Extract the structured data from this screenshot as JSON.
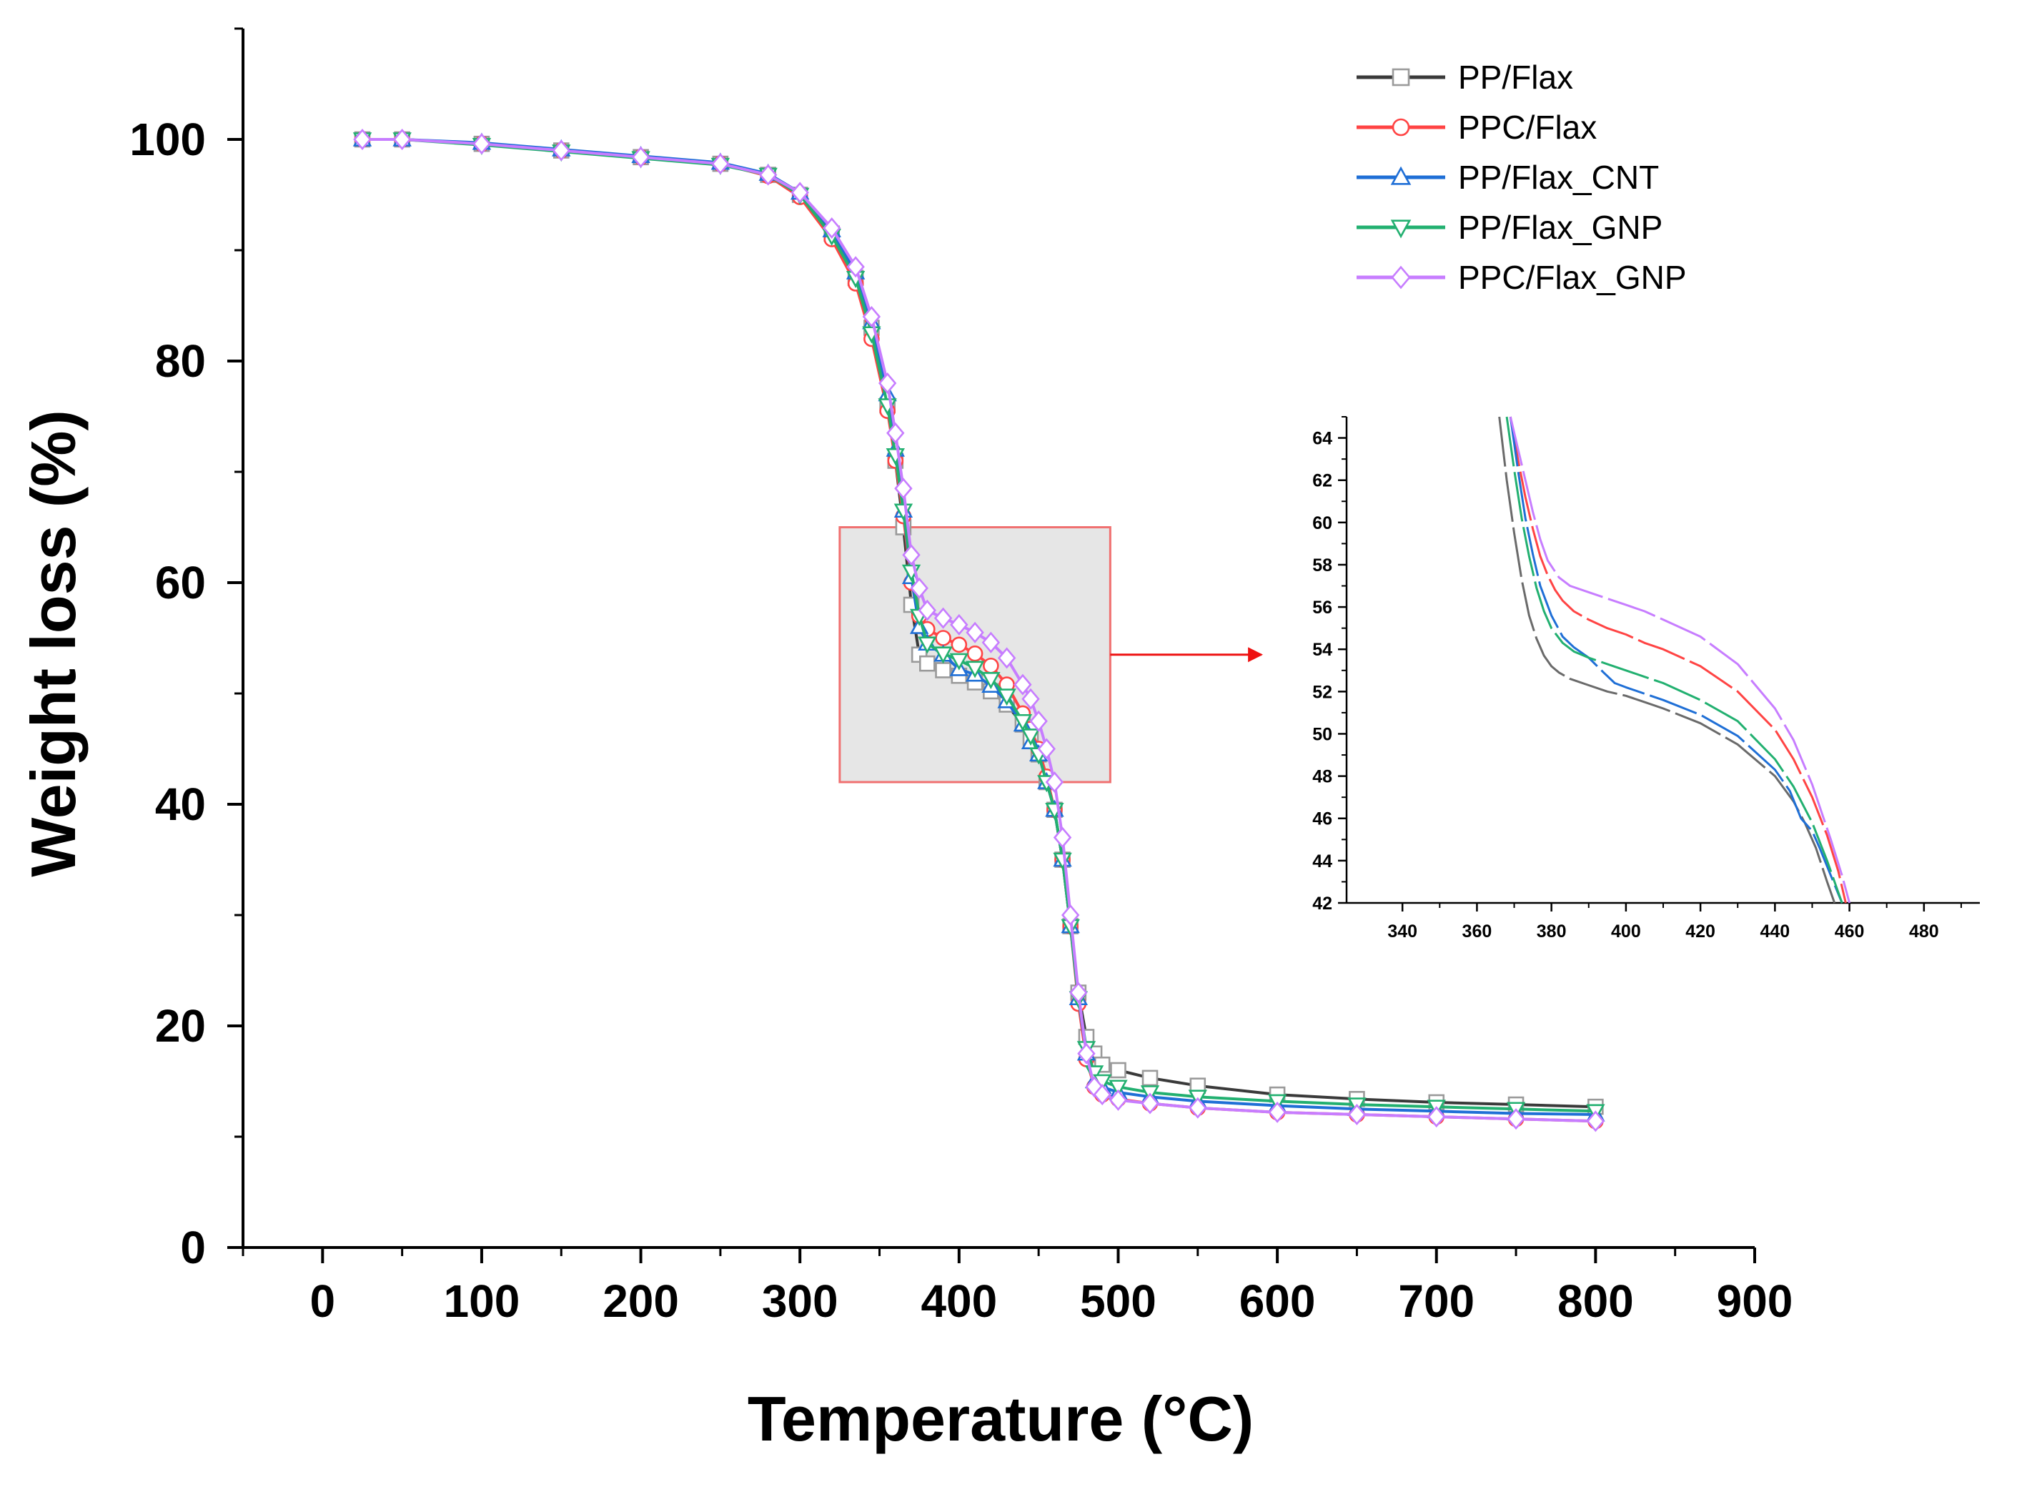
{
  "chart_data": [
    {
      "type": "line",
      "name": "main",
      "title": "",
      "xlabel": "Temperature (°C)",
      "ylabel": "Weight loss (%)",
      "xlim": [
        -50,
        900
      ],
      "ylim": [
        0,
        110
      ],
      "xticks": [
        0,
        100,
        200,
        300,
        400,
        500,
        600,
        700,
        800,
        900
      ],
      "yticks": [
        0,
        20,
        40,
        60,
        80,
        100
      ],
      "legend_position": "top-right",
      "zoom_box": {
        "x_range": [
          325,
          495
        ],
        "y_range": [
          42,
          65
        ]
      },
      "series": [
        {
          "name": "PP/Flax",
          "color": "#3a3a3a",
          "marker": "square",
          "x": [
            25,
            50,
            100,
            150,
            200,
            250,
            280,
            300,
            320,
            335,
            345,
            355,
            360,
            365,
            370,
            375,
            380,
            390,
            400,
            410,
            420,
            430,
            440,
            445,
            450,
            455,
            460,
            465,
            470,
            475,
            480,
            485,
            490,
            500,
            520,
            550,
            600,
            650,
            700,
            750,
            800
          ],
          "y": [
            100,
            100,
            99.6,
            99.0,
            98.4,
            97.8,
            96.8,
            95.0,
            91.5,
            87.5,
            83.0,
            76.0,
            71.0,
            65.0,
            58.0,
            53.5,
            52.7,
            52.1,
            51.6,
            51.0,
            50.2,
            49.0,
            47.2,
            46.0,
            44.5,
            42.0,
            39.5,
            35.0,
            29.0,
            23.0,
            19.0,
            17.5,
            16.5,
            16.0,
            15.3,
            14.6,
            13.8,
            13.4,
            13.1,
            12.9,
            12.7
          ]
        },
        {
          "name": "PPC/Flax",
          "color": "#ff4444",
          "marker": "circle",
          "x": [
            25,
            50,
            100,
            150,
            200,
            250,
            280,
            300,
            320,
            335,
            345,
            355,
            360,
            365,
            370,
            375,
            380,
            390,
            400,
            410,
            420,
            430,
            440,
            445,
            450,
            455,
            460,
            465,
            470,
            475,
            480,
            485,
            490,
            500,
            520,
            550,
            600,
            650,
            700,
            750,
            800
          ],
          "y": [
            100,
            100,
            99.6,
            99.0,
            98.4,
            97.8,
            96.7,
            94.8,
            91.0,
            87.0,
            82.0,
            75.5,
            71.0,
            66.0,
            60.0,
            57.0,
            55.8,
            55.0,
            54.4,
            53.6,
            52.5,
            50.8,
            48.2,
            46.8,
            45.0,
            42.5,
            39.5,
            35.0,
            29.0,
            22.0,
            17.0,
            14.5,
            13.8,
            13.4,
            13.0,
            12.6,
            12.2,
            12.0,
            11.8,
            11.6,
            11.4
          ]
        },
        {
          "name": "PP/Flax_CNT",
          "color": "#1f6fd6",
          "marker": "triangle-up",
          "x": [
            25,
            50,
            100,
            150,
            200,
            250,
            280,
            300,
            320,
            335,
            345,
            355,
            360,
            365,
            370,
            375,
            380,
            390,
            400,
            410,
            420,
            430,
            440,
            445,
            450,
            455,
            460,
            465,
            470,
            475,
            480,
            485,
            490,
            500,
            520,
            550,
            600,
            650,
            700,
            750,
            800
          ],
          "y": [
            100,
            100,
            99.7,
            99.1,
            98.5,
            97.9,
            96.9,
            95.2,
            91.8,
            88.0,
            83.5,
            77.0,
            72.0,
            66.5,
            60.5,
            56.0,
            54.5,
            53.5,
            52.2,
            51.7,
            50.7,
            49.3,
            47.2,
            45.6,
            44.5,
            42.0,
            39.5,
            35.0,
            29.0,
            22.5,
            17.5,
            15.0,
            14.5,
            14.0,
            13.6,
            13.2,
            12.8,
            12.5,
            12.3,
            12.1,
            12.0
          ]
        },
        {
          "name": "PP/Flax_GNP",
          "color": "#22b070",
          "marker": "triangle-down",
          "x": [
            25,
            50,
            100,
            150,
            200,
            250,
            280,
            300,
            320,
            335,
            345,
            355,
            360,
            365,
            370,
            375,
            380,
            390,
            400,
            410,
            420,
            430,
            440,
            445,
            450,
            455,
            460,
            465,
            470,
            475,
            480,
            485,
            490,
            500,
            520,
            550,
            600,
            650,
            700,
            750,
            800
          ],
          "y": [
            100,
            100,
            99.5,
            98.9,
            98.3,
            97.7,
            96.8,
            95.0,
            91.3,
            87.5,
            82.5,
            76.0,
            71.5,
            66.5,
            61.0,
            57.0,
            54.5,
            53.6,
            53.0,
            52.3,
            51.3,
            49.8,
            47.5,
            46.2,
            44.5,
            42.0,
            39.5,
            35.0,
            29.0,
            22.5,
            18.0,
            15.8,
            15.0,
            14.5,
            14.0,
            13.6,
            13.2,
            12.9,
            12.7,
            12.5,
            12.3
          ]
        },
        {
          "name": "PPC/Flax_GNP",
          "color": "#c77dff",
          "marker": "diamond",
          "x": [
            25,
            50,
            100,
            150,
            200,
            250,
            280,
            300,
            320,
            335,
            345,
            355,
            360,
            365,
            370,
            375,
            380,
            390,
            400,
            410,
            420,
            430,
            440,
            445,
            450,
            455,
            460,
            465,
            470,
            475,
            480,
            485,
            490,
            500,
            520,
            550,
            600,
            650,
            700,
            750,
            800
          ],
          "y": [
            100,
            100,
            99.6,
            99.0,
            98.4,
            97.8,
            96.8,
            95.2,
            92.0,
            88.5,
            84.0,
            78.0,
            73.5,
            68.5,
            62.5,
            59.5,
            57.5,
            56.8,
            56.2,
            55.5,
            54.6,
            53.2,
            50.8,
            49.5,
            47.5,
            45.0,
            42.0,
            37.0,
            30.0,
            23.0,
            17.5,
            14.5,
            13.8,
            13.3,
            13.0,
            12.6,
            12.2,
            12.0,
            11.8,
            11.6,
            11.4
          ]
        }
      ]
    },
    {
      "type": "line",
      "name": "inset",
      "title": "",
      "xlabel": "",
      "ylabel": "",
      "xlim": [
        325,
        495
      ],
      "ylim": [
        42,
        65
      ],
      "xticks": [
        340,
        360,
        380,
        400,
        420,
        440,
        460,
        480
      ],
      "yticks": [
        42,
        44,
        46,
        48,
        50,
        52,
        54,
        56,
        58,
        60,
        62,
        64
      ],
      "series": [
        {
          "name": "PP/Flax",
          "color": "#6a6a6a",
          "x": [
            366,
            368,
            370,
            372,
            374,
            376,
            378,
            380,
            382,
            385,
            390,
            395,
            400,
            405,
            410,
            420,
            430,
            440,
            445,
            448,
            451,
            454,
            456
          ],
          "y": [
            65,
            62,
            59.5,
            57.3,
            55.6,
            54.5,
            53.7,
            53.2,
            52.9,
            52.6,
            52.3,
            52.0,
            51.8,
            51.5,
            51.2,
            50.5,
            49.5,
            48.0,
            46.8,
            45.8,
            44.6,
            43.0,
            42
          ]
        },
        {
          "name": "PPC/Flax",
          "color": "#ff4444",
          "x": [
            369,
            371,
            373,
            375,
            377,
            379,
            381,
            383,
            386,
            390,
            395,
            400,
            405,
            410,
            420,
            430,
            440,
            445,
            450,
            454,
            457,
            459
          ],
          "y": [
            65,
            63,
            61.2,
            59.7,
            58.4,
            57.5,
            56.8,
            56.3,
            55.8,
            55.4,
            55.0,
            54.7,
            54.3,
            54.0,
            53.2,
            52.0,
            50.2,
            48.8,
            47.0,
            45.2,
            43.5,
            42
          ]
        },
        {
          "name": "PP/Flax_CNT",
          "color": "#1f6fd6",
          "x": [
            369,
            371,
            373,
            375,
            377,
            380,
            383,
            386,
            390,
            394,
            397,
            400,
            405,
            410,
            420,
            430,
            440,
            444,
            447,
            450,
            452,
            455,
            458
          ],
          "y": [
            65,
            62.5,
            60.2,
            58.5,
            57.0,
            55.6,
            54.6,
            54.1,
            53.6,
            52.9,
            52.4,
            52.2,
            51.9,
            51.6,
            50.9,
            49.9,
            48.3,
            47.3,
            46.0,
            45.4,
            44.6,
            43.3,
            42
          ]
        },
        {
          "name": "PP/Flax_GNP",
          "color": "#22b070",
          "x": [
            368,
            370,
            372,
            374,
            376,
            378,
            380,
            383,
            386,
            390,
            395,
            400,
            405,
            410,
            420,
            430,
            440,
            445,
            450,
            454,
            458
          ],
          "y": [
            65,
            62.5,
            60.2,
            58.4,
            56.9,
            55.8,
            55.0,
            54.3,
            53.9,
            53.6,
            53.3,
            53.0,
            52.7,
            52.4,
            51.6,
            50.6,
            48.8,
            47.5,
            45.8,
            44.0,
            42
          ]
        },
        {
          "name": "PPC/Flax_GNP",
          "color": "#c77dff",
          "x": [
            369,
            371,
            373,
            375,
            377,
            379,
            382,
            385,
            390,
            395,
            400,
            405,
            410,
            420,
            430,
            440,
            445,
            450,
            455,
            458,
            460
          ],
          "y": [
            65,
            63.5,
            62,
            60.5,
            59.2,
            58.2,
            57.4,
            57.0,
            56.7,
            56.4,
            56.1,
            55.8,
            55.4,
            54.6,
            53.3,
            51.2,
            49.7,
            47.6,
            45.0,
            43.3,
            42
          ]
        }
      ]
    }
  ]
}
